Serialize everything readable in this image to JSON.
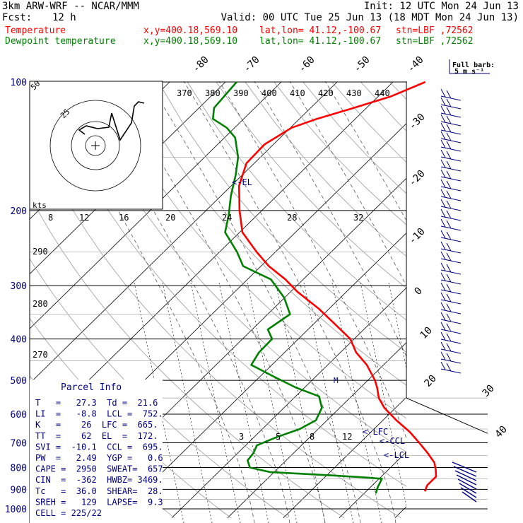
{
  "header": {
    "model": "3km ARW-WRF -- NCAR/MMM",
    "init": "Init: 12 UTC Mon 24 Jun 13",
    "fcst_label": "Fcst:",
    "fcst_value": "12 h",
    "valid": "Valid: 00 UTC Tue 25 Jun 13 (18 MDT Mon 24 Jun 13)",
    "temperature_line": {
      "label": "Temperature",
      "xy": "x,y=400.18,569.10",
      "latlon": "lat,lon= 41.12,-100.67",
      "stn": "stn=LBF ,72562"
    },
    "dewpoint_line": {
      "label": "Dewpoint temperature",
      "xy": "x,y=400.18,569.10",
      "latlon": "lat,lon= 41.12,-100.67",
      "stn": "stn=LBF ,72562"
    }
  },
  "full_barb_label": {
    "line1": "Full barb:",
    "line2": "5 m s⁻¹"
  },
  "hodograph": {
    "ring_label_outer": "50",
    "ring_label_inner": "25",
    "kts_label": "kts"
  },
  "el_marker": "<-EL",
  "lfc_marker": "<-LFC",
  "ccl_marker": "<-CCL",
  "lcl_marker": "<-LCL",
  "m_marker": "M",
  "parcel_info": {
    "title": "Parcel Info",
    "rows": [
      "T   =   27.3  Td =  21.6",
      "LI  =   -8.8  LCL =  752.",
      "K   =    26  LFC =  665.",
      "TT  =    62  EL  =  172.",
      "SVI =  -10.1  CCL =  695.",
      "PW  =   2.49  YGP =   0.6",
      "CAPE =  2950  SWEAT=  657",
      "CIN  =  -362  HWBZ= 3469.",
      "Tc   =  36.0  SHEAR=  28.",
      "SREH =   129  LAPSE=  9.3",
      "CELL = 225/22"
    ]
  },
  "chart_data": {
    "type": "line",
    "title": "",
    "xlabel": "",
    "ylabel": "",
    "pressure_axis": {
      "label_levels": [
        100,
        200,
        300,
        400,
        500,
        600,
        700,
        800,
        900,
        1000
      ]
    },
    "isotherm_labels": [
      -80,
      -70,
      -60,
      -50,
      -40,
      -30,
      -20,
      -10,
      0,
      10,
      20,
      30,
      40
    ],
    "dry_adiabat_labels": [
      370,
      380,
      390,
      400,
      410,
      420,
      430,
      440
    ],
    "mixing_ratio_labels_top": [
      8,
      12,
      16,
      20,
      24,
      28,
      32
    ],
    "mixing_ratio_labels_bottom": [
      3,
      5,
      8,
      12
    ],
    "theta_e_labels": [
      290,
      280,
      270
    ],
    "series": [
      {
        "name": "Temperature",
        "color": "#ff0000",
        "points": [
          [
            910,
            30.5
          ],
          [
            880,
            29.8
          ],
          [
            840,
            29.8
          ],
          [
            810,
            28.5
          ],
          [
            780,
            27.0
          ],
          [
            740,
            24.0
          ],
          [
            700,
            20.6
          ],
          [
            660,
            16.9
          ],
          [
            620,
            12.4
          ],
          [
            580,
            8.0
          ],
          [
            550,
            5.2
          ],
          [
            520,
            3.0
          ],
          [
            500,
            1.3
          ],
          [
            460,
            -3.0
          ],
          [
            430,
            -7.2
          ],
          [
            400,
            -10.7
          ],
          [
            370,
            -16.0
          ],
          [
            340,
            -21.8
          ],
          [
            310,
            -28.8
          ],
          [
            290,
            -33.2
          ],
          [
            270,
            -38.6
          ],
          [
            250,
            -43.4
          ],
          [
            225,
            -49.5
          ],
          [
            200,
            -54.0
          ],
          [
            175,
            -58.6
          ],
          [
            155,
            -61.4
          ],
          [
            140,
            -61.6
          ],
          [
            128,
            -59.8
          ],
          [
            122,
            -56.9
          ],
          [
            115,
            -52.3
          ],
          [
            108,
            -47.7
          ],
          [
            100,
            -44.2
          ]
        ]
      },
      {
        "name": "Dewpoint temperature",
        "color": "#008000",
        "points": [
          [
            920,
            22.1
          ],
          [
            890,
            21.3
          ],
          [
            850,
            20.5
          ],
          [
            845,
            17.8
          ],
          [
            835,
            11.0
          ],
          [
            820,
            -0.8
          ],
          [
            800,
            -5.2
          ],
          [
            770,
            -6.9
          ],
          [
            740,
            -7.2
          ],
          [
            710,
            -8.0
          ],
          [
            680,
            -6.0
          ],
          [
            650,
            -3.3
          ],
          [
            620,
            -2.0
          ],
          [
            580,
            -3.2
          ],
          [
            545,
            -5.8
          ],
          [
            520,
            -11.5
          ],
          [
            490,
            -17.5
          ],
          [
            460,
            -23.7
          ],
          [
            430,
            -24.6
          ],
          [
            400,
            -24.7
          ],
          [
            380,
            -27.2
          ],
          [
            350,
            -26.0
          ],
          [
            320,
            -30.1
          ],
          [
            290,
            -35.8
          ],
          [
            270,
            -43.2
          ],
          [
            250,
            -46.9
          ],
          [
            225,
            -52.6
          ],
          [
            205,
            -55.1
          ],
          [
            185,
            -58.2
          ],
          [
            165,
            -61.2
          ],
          [
            150,
            -64.0
          ],
          [
            135,
            -68.1
          ],
          [
            128,
            -71.4
          ],
          [
            122,
            -75.5
          ],
          [
            115,
            -77.3
          ],
          [
            100,
            -78.0
          ]
        ]
      }
    ]
  }
}
